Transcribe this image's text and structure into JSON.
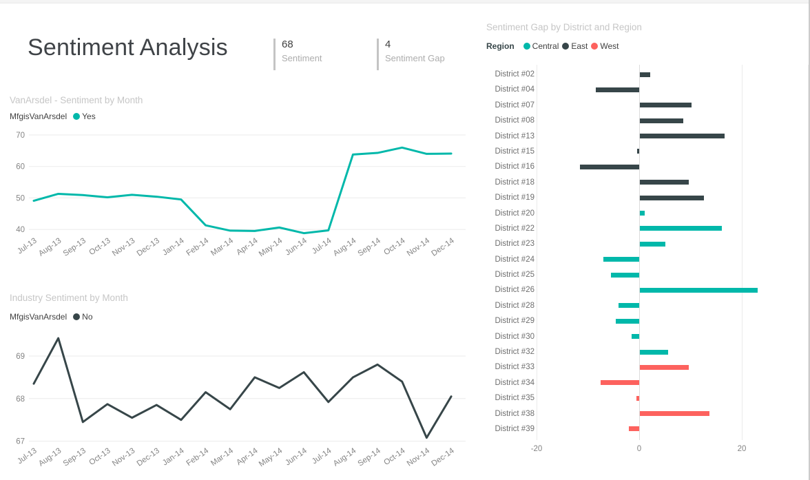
{
  "page": {
    "title": "Sentiment Analysis"
  },
  "kpis": [
    {
      "value": "68",
      "label": "Sentiment"
    },
    {
      "value": "4",
      "label": "Sentiment Gap"
    }
  ],
  "colors": {
    "teal": "#01B8AA",
    "dark": "#374649",
    "red": "#FD625E",
    "gridline": "#ebebeb",
    "axis_text": "#848484",
    "chart_title": "#c6c6c6"
  },
  "chart_data": [
    {
      "type": "line",
      "title": "VanArsdel - Sentiment by Month",
      "legend_prefix": "MfgisVanArsdel",
      "legend_label": "Yes",
      "color": "#01B8AA",
      "x": [
        "Jul-13",
        "Aug-13",
        "Sep-13",
        "Oct-13",
        "Nov-13",
        "Dec-13",
        "Jan-14",
        "Feb-14",
        "Mar-14",
        "Apr-14",
        "May-14",
        "Jun-14",
        "Jul-14",
        "Aug-14",
        "Sep-14",
        "Oct-14",
        "Nov-14",
        "Dec-14"
      ],
      "values": [
        49.1,
        51.3,
        50.9,
        50.2,
        51.0,
        50.4,
        49.5,
        41.3,
        39.6,
        39.5,
        40.6,
        38.8,
        39.7,
        63.8,
        64.3,
        66.0,
        64.0,
        64.1
      ],
      "y_ticks": [
        70,
        60,
        50,
        40
      ],
      "ylim": [
        38,
        71
      ],
      "xlabel": "",
      "ylabel": "",
      "grid": true,
      "legend_position": "top"
    },
    {
      "type": "line",
      "title": "Industry Sentiment by Month",
      "legend_prefix": "MfgisVanArsdel",
      "legend_label": "No",
      "color": "#374649",
      "x": [
        "Jul-13",
        "Aug-13",
        "Sep-13",
        "Oct-13",
        "Nov-13",
        "Dec-13",
        "Jan-14",
        "Feb-14",
        "Mar-14",
        "Apr-14",
        "May-14",
        "Jun-14",
        "Jul-14",
        "Aug-14",
        "Sep-14",
        "Oct-14",
        "Nov-14",
        "Dec-14"
      ],
      "values": [
        68.35,
        69.42,
        67.45,
        67.87,
        67.55,
        67.85,
        67.5,
        68.15,
        67.75,
        68.5,
        68.25,
        68.62,
        67.92,
        68.5,
        68.8,
        68.4,
        67.08,
        68.05
      ],
      "y_ticks": [
        69,
        68,
        67
      ],
      "ylim": [
        67,
        69.6
      ],
      "xlabel": "",
      "ylabel": "",
      "grid": true,
      "legend_position": "top"
    },
    {
      "type": "bar",
      "orientation": "horizontal",
      "title": "Sentiment Gap by District and Region",
      "legend_title": "Region",
      "legend_items": [
        {
          "label": "Central",
          "color": "#01B8AA"
        },
        {
          "label": "East",
          "color": "#374649"
        },
        {
          "label": "West",
          "color": "#FD625E"
        }
      ],
      "x_ticks": [
        -20,
        0,
        20
      ],
      "xlim": [
        -20,
        33
      ],
      "grid": true,
      "legend_position": "top",
      "rows": [
        {
          "district": "District #02",
          "region": "East",
          "value": 2
        },
        {
          "district": "District #04",
          "region": "East",
          "value": -8.5
        },
        {
          "district": "District #07",
          "region": "East",
          "value": 10
        },
        {
          "district": "District #08",
          "region": "East",
          "value": 8.5
        },
        {
          "district": "District #13",
          "region": "East",
          "value": 16.5
        },
        {
          "district": "District #15",
          "region": "East",
          "value": -0.4
        },
        {
          "district": "District #16",
          "region": "East",
          "value": -11.5
        },
        {
          "district": "District #18",
          "region": "East",
          "value": 9.5
        },
        {
          "district": "District #19",
          "region": "East",
          "value": 12.5
        },
        {
          "district": "District #20",
          "region": "Central",
          "value": 1
        },
        {
          "district": "District #22",
          "region": "Central",
          "value": 16
        },
        {
          "district": "District #23",
          "region": "Central",
          "value": 5
        },
        {
          "district": "District #24",
          "region": "Central",
          "value": -7
        },
        {
          "district": "District #25",
          "region": "Central",
          "value": -5.5
        },
        {
          "district": "District #26",
          "region": "Central",
          "value": 23
        },
        {
          "district": "District #28",
          "region": "Central",
          "value": -4
        },
        {
          "district": "District #29",
          "region": "Central",
          "value": -4.5
        },
        {
          "district": "District #30",
          "region": "Central",
          "value": -1.5
        },
        {
          "district": "District #32",
          "region": "Central",
          "value": 5.5
        },
        {
          "district": "District #33",
          "region": "West",
          "value": 9.5
        },
        {
          "district": "District #34",
          "region": "West",
          "value": -7.5
        },
        {
          "district": "District #35",
          "region": "West",
          "value": -0.6
        },
        {
          "district": "District #38",
          "region": "West",
          "value": 13.5
        },
        {
          "district": "District #39",
          "region": "West",
          "value": -2
        }
      ]
    }
  ]
}
